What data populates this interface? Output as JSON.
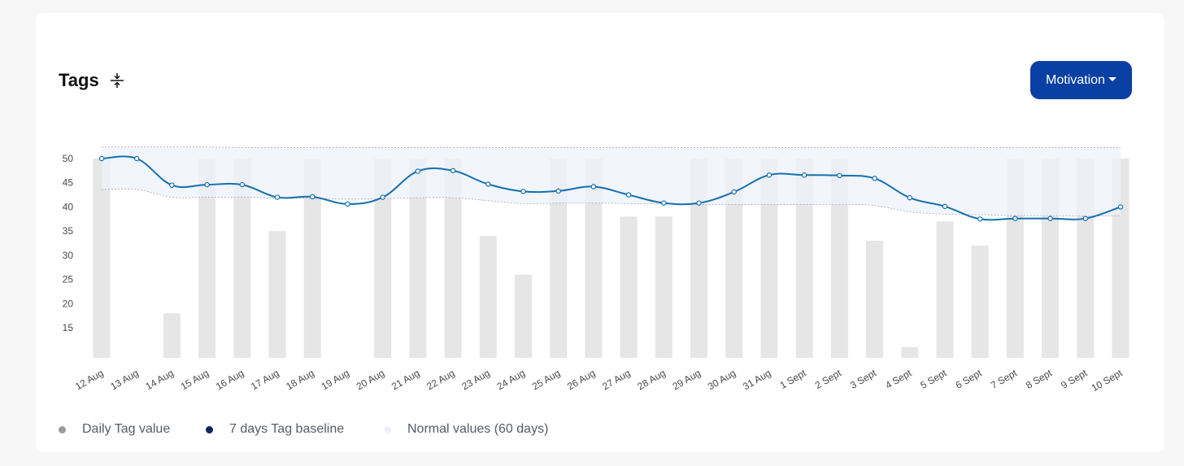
{
  "header": {
    "title": "Tags",
    "dropdown_label": "Motivation"
  },
  "legend": {
    "daily": "Daily Tag value",
    "baseline": "7 days Tag baseline",
    "normal": "Normal values (60 days)"
  },
  "colors": {
    "bar": "#e6e6e6",
    "band": "#eef1f9",
    "band_edge": "#a7a7b0",
    "line": "#1570b0",
    "button": "#0a3fa3",
    "legend_daily": "#9a9a9a",
    "legend_baseline": "#12235e",
    "legend_normal": "#eef1f9"
  },
  "chart_data": {
    "type": "bar",
    "categories": [
      "12 Aug",
      "13 Aug",
      "14 Aug",
      "15 Aug",
      "16 Aug",
      "17 Aug",
      "18 Aug",
      "19 Aug",
      "20 Aug",
      "21 Aug",
      "22 Aug",
      "23 Aug",
      "24 Aug",
      "25 Aug",
      "26 Aug",
      "27 Aug",
      "28 Aug",
      "29 Aug",
      "30 Aug",
      "31 Aug",
      "1 Sept",
      "2 Sept",
      "3 Sept",
      "4 Sept",
      "5 Sept",
      "6 Sept",
      "7 Sept",
      "8 Sept",
      "9 Sept",
      "10 Sept"
    ],
    "series": [
      {
        "name": "Daily Tag value",
        "type": "bar",
        "values": [
          50,
          null,
          18,
          50,
          50,
          35,
          50,
          null,
          50,
          50,
          50,
          34,
          26,
          50,
          50,
          38,
          38,
          50,
          50,
          50,
          50,
          50,
          33,
          11,
          37,
          32,
          50,
          50,
          50,
          50
        ]
      },
      {
        "name": "7 days Tag baseline",
        "type": "line",
        "values": [
          50,
          50,
          44.5,
          44.6,
          44.6,
          42,
          42.1,
          40.6,
          42,
          47.4,
          47.5,
          44.7,
          43.2,
          43.3,
          44.2,
          42.5,
          40.8,
          40.8,
          43.1,
          46.6,
          46.6,
          46.5,
          45.9,
          41.9,
          40.1,
          37.5,
          37.6,
          37.6,
          37.6,
          40
        ]
      }
    ],
    "normal_band": {
      "name": "Normal values (60 days)",
      "upper": [
        52.4,
        52.4,
        52.4,
        52.4,
        52.3,
        52.3,
        52.3,
        52.3,
        52.3,
        52.3,
        52.3,
        52.3,
        52.3,
        52.3,
        52.3,
        52.3,
        52.3,
        52.3,
        52.3,
        52.3,
        52.3,
        52.3,
        52.3,
        52.3,
        52.3,
        52.3,
        52.3,
        52.3,
        52.3,
        52.3
      ],
      "lower": [
        43.6,
        43.6,
        42,
        42,
        42,
        41.8,
        41.8,
        41.6,
        41.7,
        41.9,
        41.9,
        41.3,
        40.7,
        40.8,
        40.8,
        40.7,
        40.6,
        40.5,
        40.5,
        40.5,
        40.5,
        40.5,
        40.3,
        39,
        38.5,
        38.4,
        38.2,
        38.2,
        38.1,
        38.2
      ]
    },
    "ylim": [
      10,
      52.5
    ],
    "yticks": [
      15,
      20,
      25,
      30,
      35,
      40,
      45,
      50
    ],
    "xlabel": "",
    "ylabel": ""
  }
}
